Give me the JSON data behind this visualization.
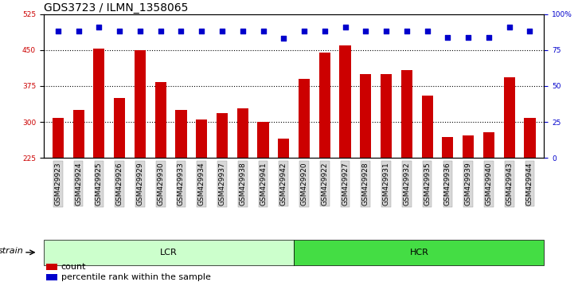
{
  "title": "GDS3723 / ILMN_1358065",
  "categories": [
    "GSM429923",
    "GSM429924",
    "GSM429925",
    "GSM429926",
    "GSM429929",
    "GSM429930",
    "GSM429933",
    "GSM429934",
    "GSM429937",
    "GSM429938",
    "GSM429941",
    "GSM429942",
    "GSM429920",
    "GSM429922",
    "GSM429927",
    "GSM429928",
    "GSM429931",
    "GSM429932",
    "GSM429935",
    "GSM429936",
    "GSM429939",
    "GSM429940",
    "GSM429943",
    "GSM429944"
  ],
  "bar_values": [
    308,
    325,
    453,
    350,
    450,
    383,
    325,
    305,
    318,
    328,
    301,
    265,
    390,
    445,
    460,
    400,
    400,
    408,
    355,
    268,
    272,
    278,
    393,
    308
  ],
  "percentile_values": [
    88,
    88,
    91,
    88,
    88,
    88,
    88,
    88,
    88,
    88,
    88,
    83,
    88,
    88,
    91,
    88,
    88,
    88,
    88,
    84,
    84,
    84,
    91,
    88
  ],
  "lcr_count": 12,
  "hcr_count": 12,
  "bar_color": "#cc0000",
  "dot_color": "#0000cc",
  "lcr_color": "#ccffcc",
  "hcr_color": "#44dd44",
  "ymin": 225,
  "ymax": 525,
  "yticks_left": [
    225,
    300,
    375,
    450,
    525
  ],
  "ylim_right": [
    0,
    100
  ],
  "yticks_right": [
    0,
    25,
    50,
    75,
    100
  ],
  "grid_values": [
    300,
    375,
    450
  ],
  "bg_color": "#ffffff",
  "title_fontsize": 10,
  "tick_fontsize": 6.5,
  "label_fontsize": 8,
  "legend_fontsize": 8
}
